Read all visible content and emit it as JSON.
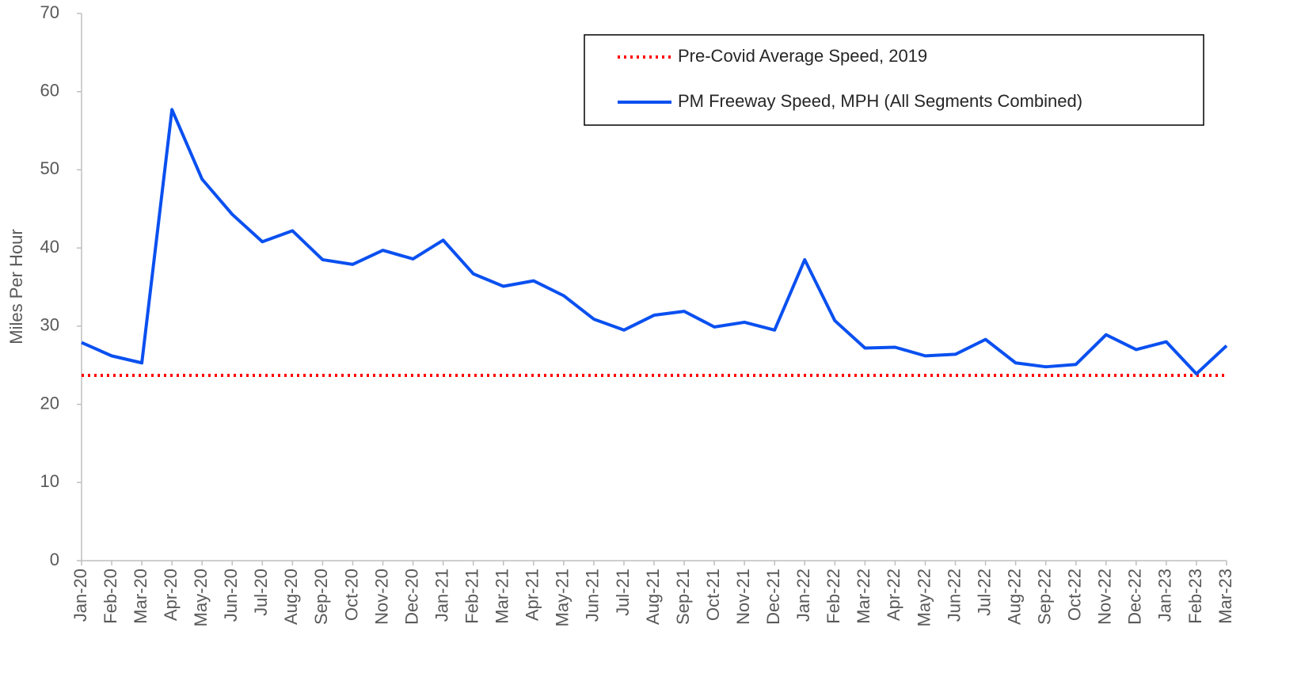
{
  "chart_data": {
    "type": "line",
    "y_axis_label": "Miles Per Hour",
    "categories": [
      "Jan-20",
      "Feb-20",
      "Mar-20",
      "Apr-20",
      "May-20",
      "Jun-20",
      "Jul-20",
      "Aug-20",
      "Sep-20",
      "Oct-20",
      "Nov-20",
      "Dec-20",
      "Jan-21",
      "Feb-21",
      "Mar-21",
      "Apr-21",
      "May-21",
      "Jun-21",
      "Jul-21",
      "Aug-21",
      "Sep-21",
      "Oct-21",
      "Nov-21",
      "Dec-21",
      "Jan-22",
      "Feb-22",
      "Mar-22",
      "Apr-22",
      "May-22",
      "Jun-22",
      "Jul-22",
      "Aug-22",
      "Sep-22",
      "Oct-22",
      "Nov-22",
      "Dec-22",
      "Jan-23",
      "Feb-23",
      "Mar-23"
    ],
    "reference_lines": [
      {
        "name": "Pre-Covid Average Speed, 2019",
        "color": "#ff0000",
        "dash": "dotted",
        "value": 23.7
      }
    ],
    "series": [
      {
        "name": "PM Freeway Speed, MPH (All Segments Combined)",
        "color": "#0a50f0",
        "values": [
          27.9,
          26.2,
          25.3,
          57.7,
          48.8,
          44.3,
          40.8,
          42.2,
          38.5,
          37.9,
          39.7,
          38.6,
          41.0,
          36.7,
          35.1,
          35.8,
          33.9,
          30.9,
          29.5,
          31.4,
          31.9,
          29.9,
          30.5,
          29.5,
          38.5,
          30.7,
          27.2,
          27.3,
          26.2,
          26.4,
          28.3,
          25.3,
          24.8,
          25.1,
          28.9,
          27.0,
          28.0,
          23.9,
          27.5
        ]
      }
    ],
    "ylim": [
      0,
      70
    ],
    "yticks": [
      0,
      10,
      20,
      30,
      40,
      50,
      60,
      70
    ],
    "grid": false,
    "legend": "top-right"
  }
}
